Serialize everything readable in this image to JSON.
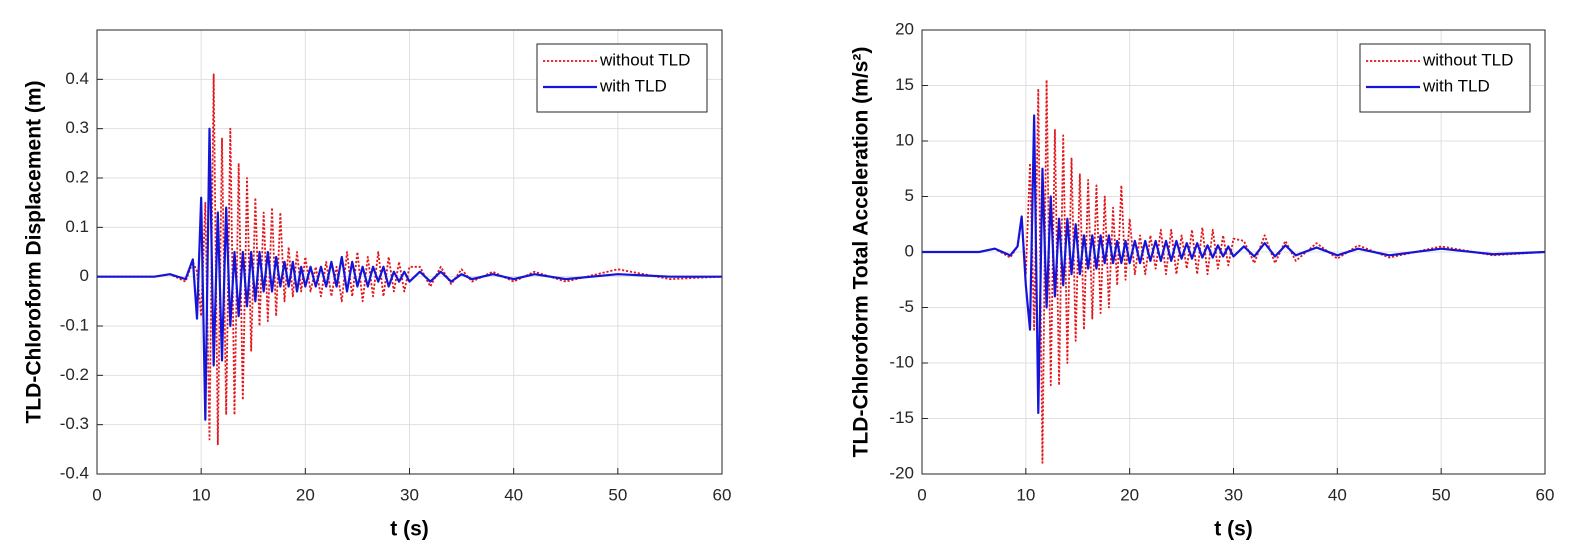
{
  "chart_data": [
    {
      "type": "line",
      "xlabel": "t (s)",
      "ylabel": "TLD-Chloroform Displacement (m)",
      "xlim": [
        0,
        60
      ],
      "ylim": [
        -0.4,
        0.5
      ],
      "xticks": [
        0,
        10,
        20,
        30,
        40,
        50,
        60
      ],
      "yticks": [
        -0.4,
        -0.3,
        -0.2,
        -0.1,
        0,
        0.1,
        0.2,
        0.3,
        0.4
      ],
      "grid": true,
      "legend": "upper right",
      "x": [
        0,
        5.5,
        7,
        8.5,
        9.2,
        9.6,
        10.0,
        10.4,
        10.8,
        11.2,
        11.6,
        12.0,
        12.4,
        12.8,
        13.2,
        13.6,
        14.0,
        14.4,
        14.8,
        15.2,
        15.6,
        16.0,
        16.4,
        16.8,
        17.2,
        17.6,
        18.0,
        18.4,
        18.8,
        19.2,
        19.6,
        20.0,
        20.5,
        21.0,
        21.5,
        22.0,
        22.5,
        23.0,
        23.5,
        24.0,
        24.5,
        25.0,
        25.5,
        26.0,
        26.5,
        27.0,
        27.5,
        28.0,
        28.5,
        29.0,
        29.5,
        30.0,
        31,
        32,
        33,
        34,
        35,
        36,
        38,
        40,
        42,
        45,
        50,
        55,
        60
      ],
      "series": [
        {
          "name": "without TLD",
          "color": "#e3161b",
          "linestyle": "dotted",
          "values": [
            0,
            0,
            0.005,
            -0.01,
            0.03,
            0.01,
            -0.08,
            0.15,
            -0.33,
            0.41,
            -0.34,
            0.28,
            -0.28,
            0.3,
            -0.28,
            0.23,
            -0.25,
            0.2,
            -0.15,
            0.16,
            -0.1,
            0.13,
            -0.09,
            0.14,
            -0.08,
            0.13,
            -0.05,
            0.06,
            -0.04,
            0.05,
            -0.03,
            0.04,
            -0.03,
            0.02,
            -0.04,
            0.03,
            -0.04,
            0.02,
            -0.05,
            0.05,
            -0.04,
            0.05,
            -0.05,
            0.04,
            -0.04,
            0.05,
            -0.04,
            0.04,
            -0.03,
            0.03,
            -0.03,
            0.02,
            0.02,
            -0.02,
            0.02,
            -0.015,
            0.015,
            -0.01,
            0.01,
            -0.01,
            0.01,
            -0.01,
            0.015,
            -0.005,
            0
          ]
        },
        {
          "name": "with TLD",
          "color": "#1515d8",
          "linestyle": "solid",
          "values": [
            0,
            0,
            0.005,
            -0.005,
            0.035,
            -0.085,
            0.16,
            -0.29,
            0.3,
            -0.18,
            0.13,
            -0.17,
            0.14,
            -0.1,
            0.05,
            -0.08,
            0.05,
            -0.06,
            0.05,
            -0.05,
            0.05,
            -0.03,
            0.05,
            -0.03,
            0.04,
            -0.02,
            0.03,
            -0.02,
            0.03,
            -0.03,
            0.02,
            -0.02,
            0.02,
            -0.02,
            0.02,
            -0.02,
            0.03,
            -0.02,
            0.04,
            -0.03,
            0.03,
            -0.02,
            0.02,
            -0.02,
            0.02,
            -0.01,
            0.02,
            -0.02,
            0.01,
            -0.01,
            0.01,
            -0.01,
            0.01,
            -0.01,
            0.01,
            -0.01,
            0.005,
            -0.005,
            0.005,
            -0.005,
            0.005,
            -0.005,
            0.005,
            0,
            0
          ]
        }
      ]
    },
    {
      "type": "line",
      "xlabel": "t (s)",
      "ylabel": "TLD-Chloroform Total Acceleration (m/s²)",
      "xlim": [
        0,
        60
      ],
      "ylim": [
        -20,
        20
      ],
      "xticks": [
        0,
        10,
        20,
        30,
        40,
        50,
        60
      ],
      "yticks": [
        -20,
        -15,
        -10,
        -5,
        0,
        5,
        10,
        15,
        20
      ],
      "grid": true,
      "legend": "upper right",
      "x": [
        0,
        5.5,
        7,
        8.5,
        9.2,
        9.6,
        10.0,
        10.4,
        10.8,
        11.2,
        11.6,
        12.0,
        12.4,
        12.8,
        13.2,
        13.6,
        14.0,
        14.4,
        14.8,
        15.2,
        15.6,
        16.0,
        16.4,
        16.8,
        17.2,
        17.6,
        18.0,
        18.4,
        18.8,
        19.2,
        19.6,
        20.0,
        20.5,
        21.0,
        21.5,
        22.0,
        22.5,
        23.0,
        23.5,
        24.0,
        24.5,
        25.0,
        25.5,
        26.0,
        26.5,
        27.0,
        27.5,
        28.0,
        28.5,
        29.0,
        29.5,
        30.0,
        31,
        32,
        33,
        34,
        35,
        36,
        38,
        40,
        42,
        45,
        50,
        55,
        60
      ],
      "series": [
        {
          "name": "without TLD",
          "color": "#e3161b",
          "linestyle": "dotted",
          "values": [
            0,
            0,
            0.3,
            -0.5,
            0.5,
            3,
            -2,
            8,
            -7,
            14.7,
            -19,
            15.5,
            -12,
            11,
            -12,
            10.5,
            -10,
            8.5,
            -8,
            7,
            -7,
            6.5,
            -6,
            6,
            -5.5,
            5,
            -5,
            4,
            -3,
            6,
            -2.5,
            3,
            -2,
            1.5,
            -2,
            1.5,
            -1.5,
            2,
            -2,
            2,
            -2,
            1.5,
            -1.5,
            2,
            -2,
            2.2,
            -2,
            2,
            -1.5,
            1.5,
            -1.2,
            1.2,
            1,
            -1,
            1.5,
            -1,
            1,
            -0.8,
            0.8,
            -0.6,
            0.6,
            -0.5,
            0.5,
            -0.3,
            0
          ]
        },
        {
          "name": "with TLD",
          "color": "#1515d8",
          "linestyle": "solid",
          "values": [
            0,
            0,
            0.3,
            -0.3,
            0.5,
            3.2,
            -3,
            -7,
            12.3,
            -14.5,
            7.5,
            -5,
            5,
            -4,
            3,
            -3,
            3,
            -2,
            2.5,
            -2,
            1.5,
            -1.5,
            1.5,
            -1.5,
            1.5,
            -1,
            1.5,
            -1,
            1,
            -1,
            1,
            -1,
            1,
            -1,
            1,
            -0.8,
            1,
            -0.8,
            1,
            -0.8,
            1,
            -0.6,
            0.8,
            -0.6,
            0.8,
            -0.5,
            0.6,
            -0.5,
            0.6,
            -0.4,
            0.5,
            -0.4,
            0.5,
            -0.4,
            0.8,
            -0.4,
            0.6,
            -0.3,
            0.4,
            -0.3,
            0.3,
            -0.3,
            0.3,
            -0.2,
            0
          ]
        }
      ]
    }
  ]
}
